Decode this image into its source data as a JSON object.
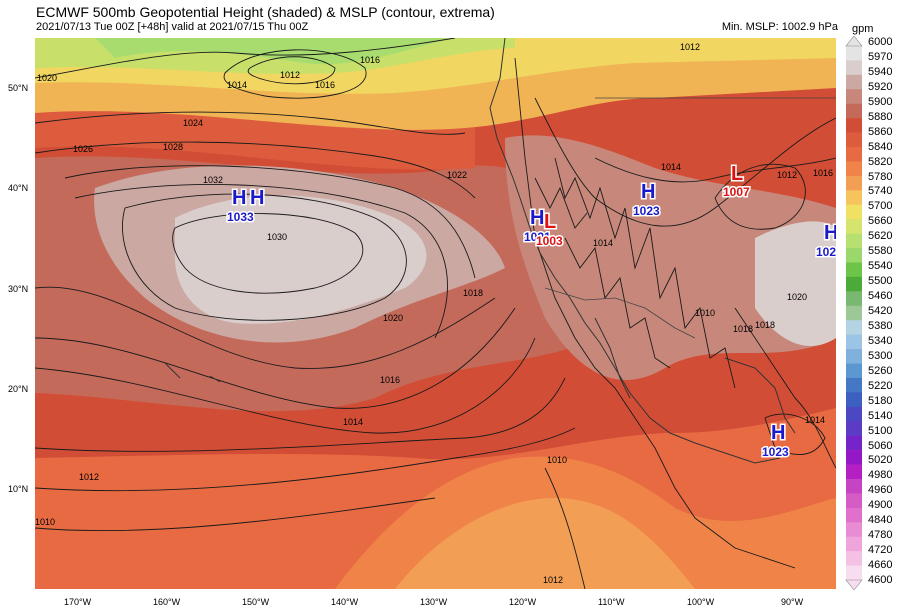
{
  "header": {
    "title": "ECMWF 500mb Geopotential Height (shaded) & MSLP (contour, extrema)",
    "subtitle": "2021/07/13 Tue 00Z [+48h] valid at 2021/07/15 Thu 00Z",
    "min_mslp": "Min. MSLP: 1002.9 hPa"
  },
  "colorbar": {
    "unit": "gpm",
    "levels": [
      "6000",
      "5970",
      "5940",
      "5920",
      "5900",
      "5880",
      "5860",
      "5840",
      "5820",
      "5780",
      "5740",
      "5700",
      "5660",
      "5620",
      "5580",
      "5540",
      "5500",
      "5460",
      "5420",
      "5380",
      "5340",
      "5300",
      "5260",
      "5220",
      "5180",
      "5140",
      "5100",
      "5060",
      "5020",
      "4980",
      "4960",
      "4900",
      "4840",
      "4780",
      "4720",
      "4660",
      "4600"
    ],
    "colors": [
      "#e4e4e4",
      "#d9cecc",
      "#cca8a2",
      "#c7887b",
      "#c46a5b",
      "#d24d35",
      "#dc5c3d",
      "#e86a43",
      "#f08448",
      "#f29e55",
      "#f5c45c",
      "#f0e064",
      "#d4e46c",
      "#b8e070",
      "#9ad86c",
      "#6cc448",
      "#4caa38",
      "#78b870",
      "#9cc898",
      "#b4d4e4",
      "#9cc4e4",
      "#80b0dc",
      "#5c98d0",
      "#4478c4",
      "#3c60c0",
      "#4c48c4",
      "#5c3cc4",
      "#7424c8",
      "#9418c8",
      "#b420c4",
      "#c444c4",
      "#d45cc4",
      "#e070cc",
      "#e88cd4",
      "#f0a4dc",
      "#f4c0e4",
      "#f8dcf0"
    ]
  },
  "axes": {
    "lat_labels": [
      "50°N",
      "40°N",
      "30°N",
      "20°N",
      "10°N"
    ],
    "lon_labels": [
      "170°W",
      "160°W",
      "150°W",
      "140°W",
      "130°W",
      "120°W",
      "110°W",
      "100°W",
      "90°W"
    ]
  },
  "isobar_labels": [
    "1020",
    "1012",
    "1014",
    "1016",
    "1016",
    "1012",
    "1024",
    "1026",
    "1028",
    "1032",
    "1030",
    "1022",
    "1018",
    "1020",
    "1016",
    "1014",
    "1012",
    "1010",
    "1010",
    "1012",
    "1014",
    "1014",
    "1012",
    "1016",
    "1018",
    "1010",
    "1020",
    "1018",
    "1014"
  ],
  "pressure_centers": [
    {
      "type": "H",
      "value": "1033",
      "color": "#1a1acc"
    },
    {
      "type": "H",
      "value": "1021",
      "color": "#1a1acc"
    },
    {
      "type": "L",
      "value": "1003",
      "color": "#dd1111"
    },
    {
      "type": "H",
      "value": "1023",
      "color": "#1a1acc"
    },
    {
      "type": "L",
      "value": "1007",
      "color": "#dd1111"
    },
    {
      "type": "H",
      "value": "102",
      "color": "#1a1acc"
    },
    {
      "type": "H",
      "value": "1023",
      "color": "#1a1acc"
    }
  ]
}
